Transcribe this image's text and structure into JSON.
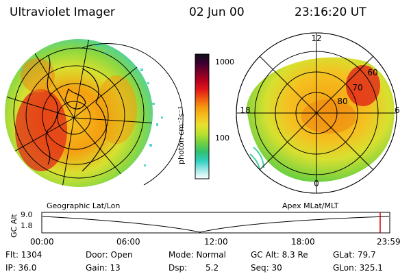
{
  "header": {
    "instrument": "Ultraviolet Imager",
    "date": "02 Jun 00",
    "time": "23:16:20 UT"
  },
  "colorbar": {
    "label": "photon cm⁻²s⁻¹",
    "ticks": [
      "1000",
      "100"
    ],
    "colors": [
      "#101018",
      "#3a0030",
      "#7a0028",
      "#b80020",
      "#e01818",
      "#f05a10",
      "#f59a10",
      "#f5c020",
      "#e8e030",
      "#b8e030",
      "#70d040",
      "#30c070",
      "#30d0c0",
      "#a0e8e8",
      "#ffffff"
    ]
  },
  "left_map": {
    "caption": "Geographic Lat/Lon"
  },
  "right_map": {
    "caption": "Apex MLat/MLT",
    "mlt_labels": [
      "12",
      "18",
      "6",
      "0"
    ],
    "lat_labels": [
      "60",
      "70",
      "80"
    ]
  },
  "altitude_plot": {
    "ylabel": "GC Alt",
    "ytick_top": "9.0",
    "ytick_bottom": "1.8",
    "xticks": [
      "00:00",
      "06:00",
      "12:00",
      "18:00",
      "23:59"
    ],
    "marker_color": "#cc0000"
  },
  "status": {
    "flt": "Flt: 1304",
    "ip": "IP: 36.0",
    "door": "Door: Open",
    "gain": "Gain: 13",
    "mode": "Mode:  Normal",
    "dsp_label": "Dsp:",
    "dsp_value": "5.2",
    "gcalt": "GC Alt: 8.3 Re",
    "seq": "Seq: 30",
    "glat": "GLat:  79.7",
    "glon": "GLon: 325.1"
  }
}
